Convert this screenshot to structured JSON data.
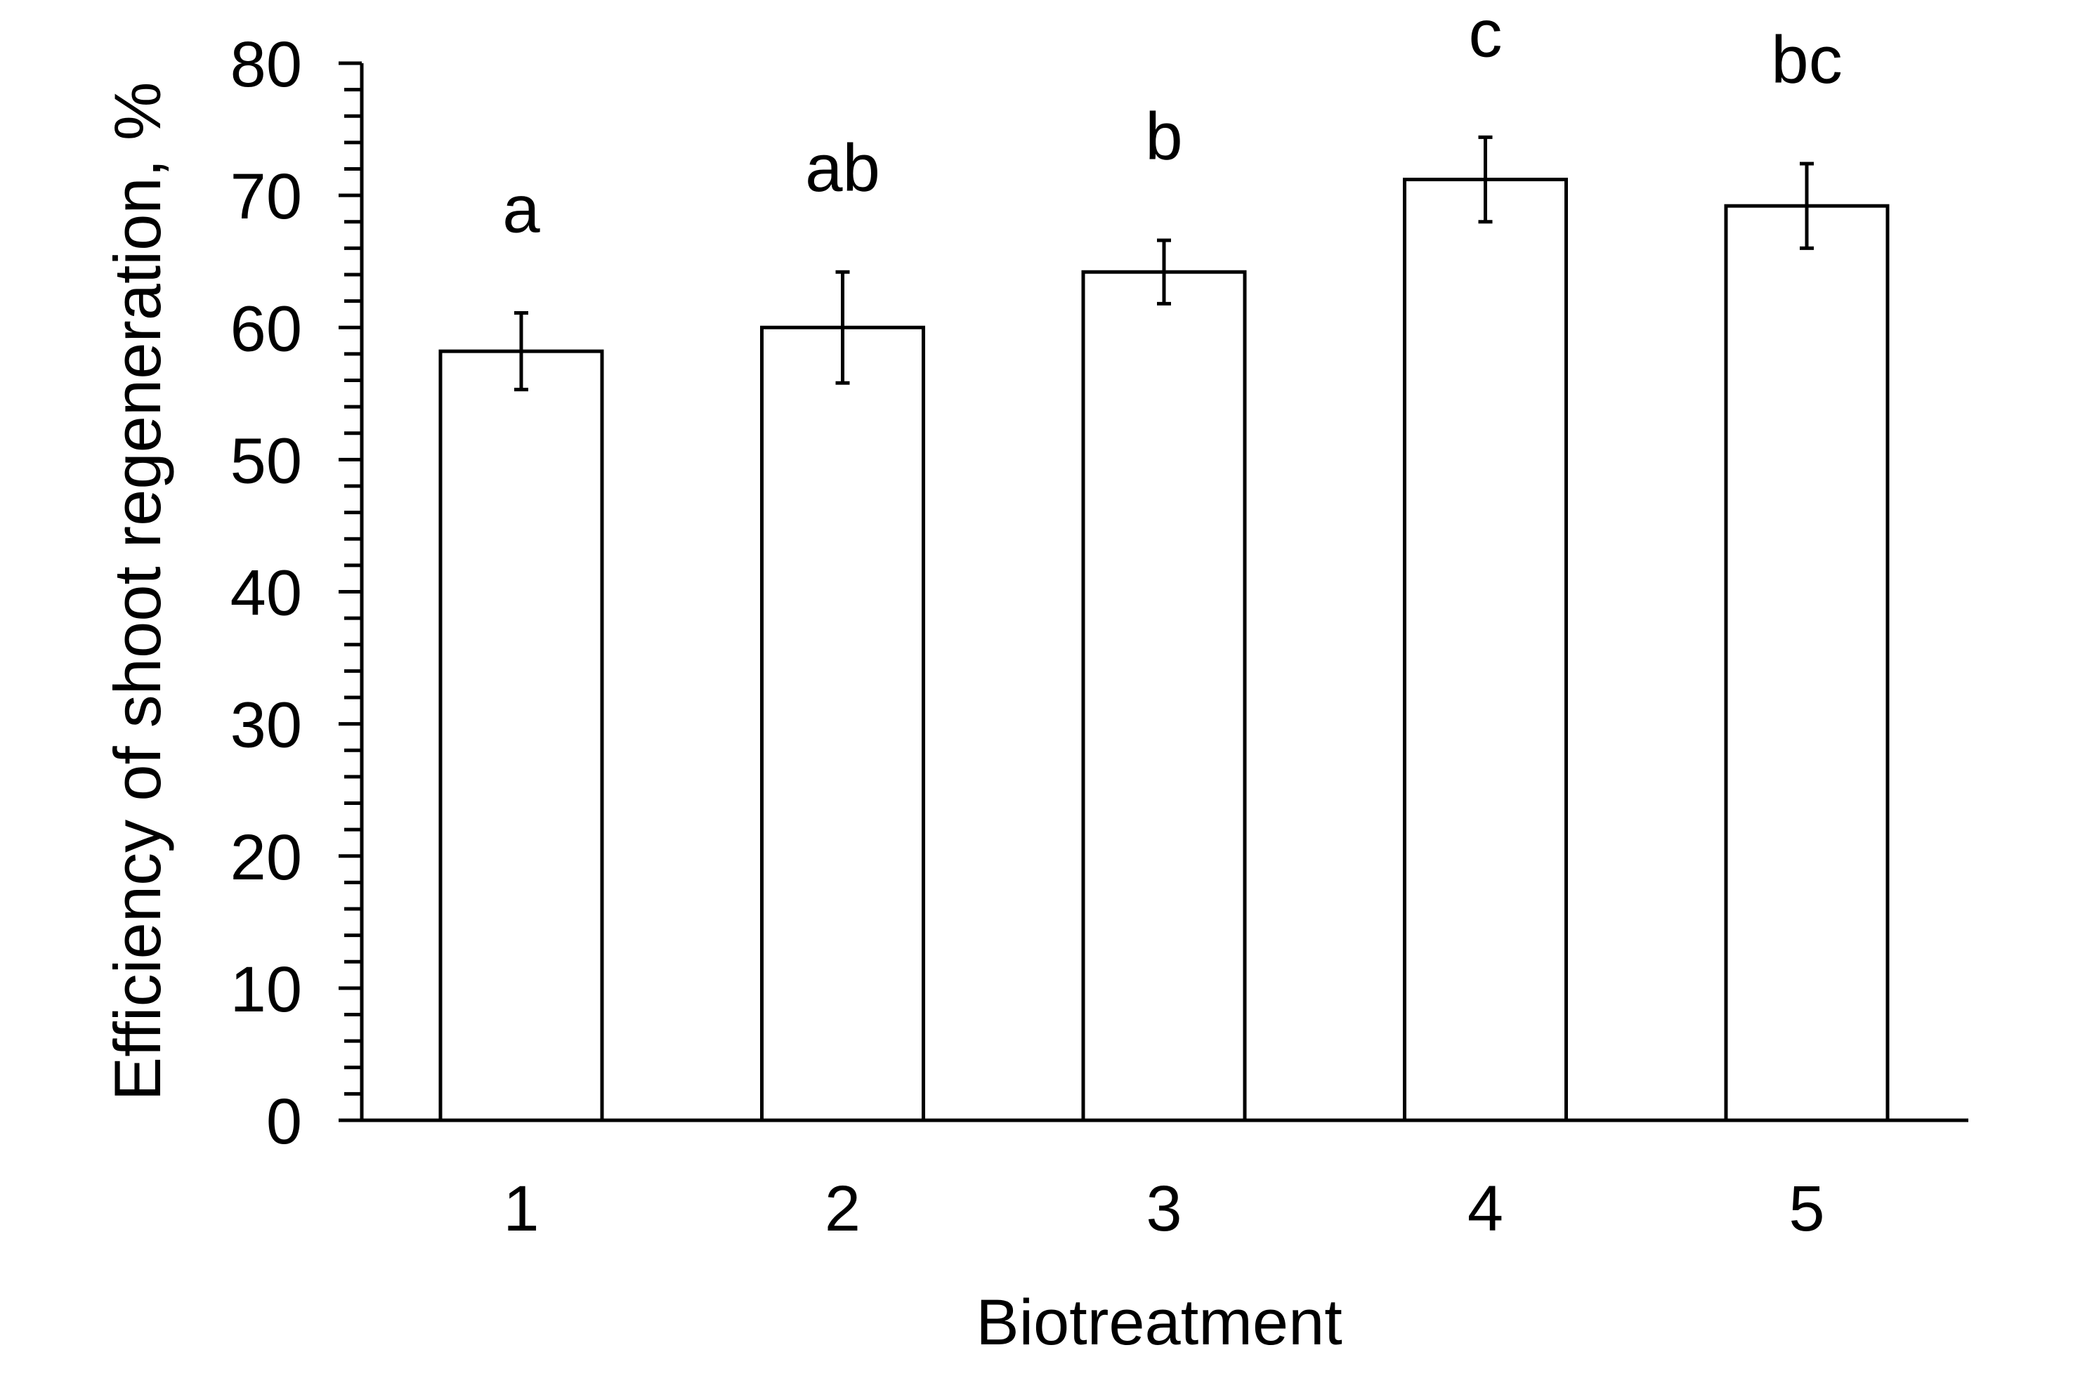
{
  "figure": {
    "background_color": "#ffffff",
    "ink_color": "#000000"
  },
  "chart_data": {
    "type": "bar",
    "title": "",
    "xlabel": "Biotreatment",
    "ylabel": "Efficiency of shoot regeneration, %",
    "categories": [
      "1",
      "2",
      "3",
      "4",
      "5"
    ],
    "series": [
      {
        "name": "Efficiency of shoot regeneration",
        "values": [
          58.2,
          60.0,
          64.2,
          71.2,
          69.2
        ],
        "error_bars_plus_minus": [
          2.9,
          4.2,
          2.4,
          3.2,
          3.2
        ],
        "significance_letters": [
          "a",
          "ab",
          "b",
          "c",
          "bc"
        ]
      }
    ],
    "ylim": [
      0,
      80
    ],
    "y_major_tick_step": 10,
    "y_minor_tick_step": 2,
    "y_tick_labels": [
      "0",
      "10",
      "20",
      "30",
      "40",
      "50",
      "60",
      "70",
      "80"
    ],
    "grid": "off",
    "legend_position": "none",
    "bar_fill_color": "#ffffff",
    "bar_border_color": "#000000",
    "error_bar_color": "#000000",
    "axis_color": "#000000"
  }
}
